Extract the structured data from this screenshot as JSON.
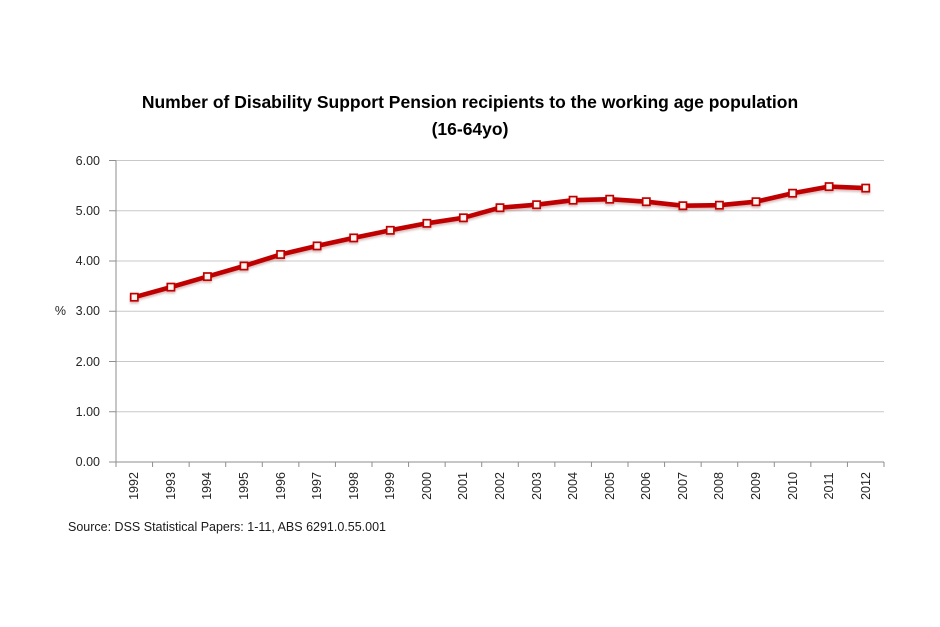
{
  "page": {
    "background": "#FFFFFF"
  },
  "chart_data": {
    "type": "line",
    "title": "Number of Disability Support Pension recipients to the working age population (16-64yo)",
    "source": "Source: DSS Statistical Papers: 1-11, ABS 6291.0.55.001",
    "xlabel": "",
    "ylabel": "%",
    "ylim": [
      0,
      6
    ],
    "grid": "horizontal",
    "legend_position": "none",
    "categories": [
      "1992",
      "1993",
      "1994",
      "1995",
      "1996",
      "1997",
      "1998",
      "1999",
      "2000",
      "2001",
      "2002",
      "2003",
      "2004",
      "2005",
      "2006",
      "2007",
      "2008",
      "2009",
      "2010",
      "2011",
      "2012"
    ],
    "values": [
      3.28,
      3.48,
      3.69,
      3.9,
      4.13,
      4.3,
      4.46,
      4.61,
      4.75,
      4.86,
      5.06,
      5.12,
      5.21,
      5.23,
      5.18,
      5.1,
      5.11,
      5.18,
      5.35,
      5.48,
      5.45
    ],
    "y_ticks": [
      {
        "value": 0,
        "label": "0.00"
      },
      {
        "value": 1,
        "label": "1.00"
      },
      {
        "value": 2,
        "label": "2.00"
      },
      {
        "value": 3,
        "label": "3.00"
      },
      {
        "value": 4,
        "label": "4.00"
      },
      {
        "value": 5,
        "label": "5.00"
      },
      {
        "value": 6,
        "label": "6.00"
      }
    ],
    "colors": {
      "line": "#C00000",
      "marker_fill": "#FDF5F0",
      "grid": "#C8C8C8",
      "axis": "#8E8E8E",
      "text": "#000000"
    },
    "marker": "square"
  }
}
